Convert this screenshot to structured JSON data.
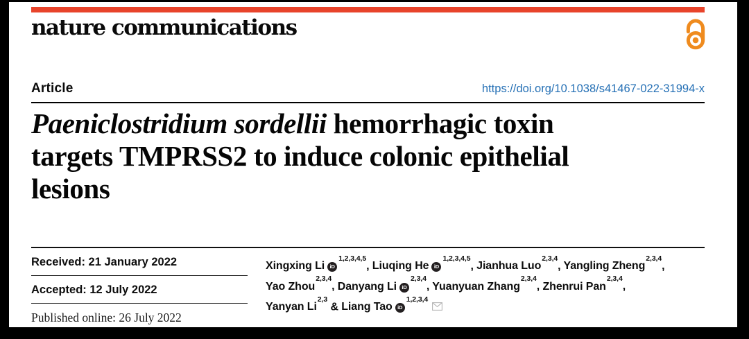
{
  "masthead": {
    "journal": "nature communications"
  },
  "header": {
    "article_label": "Article",
    "doi": "https://doi.org/10.1038/s41467-022-31994-x"
  },
  "title": {
    "italic": "Paeniclostridium sordellii",
    "rest_line1": " hemorrhagic toxin",
    "line2": "targets TMPRSS2 to induce colonic epithelial",
    "line3": "lesions"
  },
  "dates": {
    "received": "Received: 21 January 2022",
    "accepted": "Accepted: 12 July 2022",
    "published": "Published online: 26 July 2022"
  },
  "authors": {
    "orcid_label": "iD",
    "list": [
      {
        "name": "Xingxing Li",
        "orcid": true,
        "sup": "1,2,3,4,5",
        "suffix": ", "
      },
      {
        "name": "Liuqing He",
        "orcid": true,
        "sup": "1,2,3,4,5",
        "suffix": ", "
      },
      {
        "name": "Jianhua Luo",
        "orcid": false,
        "sup": "2,3,4",
        "suffix": ", "
      },
      {
        "name": "Yangling Zheng",
        "orcid": false,
        "sup": "2,3,4",
        "suffix": ",",
        "br": true
      },
      {
        "name": "Yao Zhou",
        "orcid": false,
        "sup": "2,3,4",
        "suffix": ", "
      },
      {
        "name": "Danyang Li",
        "orcid": true,
        "sup": "2,3,4",
        "suffix": ", "
      },
      {
        "name": "Yuanyuan Zhang",
        "orcid": false,
        "sup": "2,3,4",
        "suffix": ", "
      },
      {
        "name": "Zhenrui Pan",
        "orcid": false,
        "sup": "2,3,4",
        "suffix": ",",
        "br": true
      },
      {
        "name": "Yanyan Li",
        "orcid": false,
        "sup": "2,3",
        "suffix": " & "
      },
      {
        "name": "Liang Tao",
        "orcid": true,
        "sup": "1,2,3,4",
        "suffix": "",
        "envelope": true
      }
    ]
  },
  "icons": {
    "open_access": "open-padlock",
    "orcid": "iD-badge",
    "email": "envelope"
  },
  "colors": {
    "accent_red": "#e8442b",
    "accent_orange": "#ef8b1e",
    "link_blue": "#2570b5",
    "frame_black": "#000000"
  }
}
